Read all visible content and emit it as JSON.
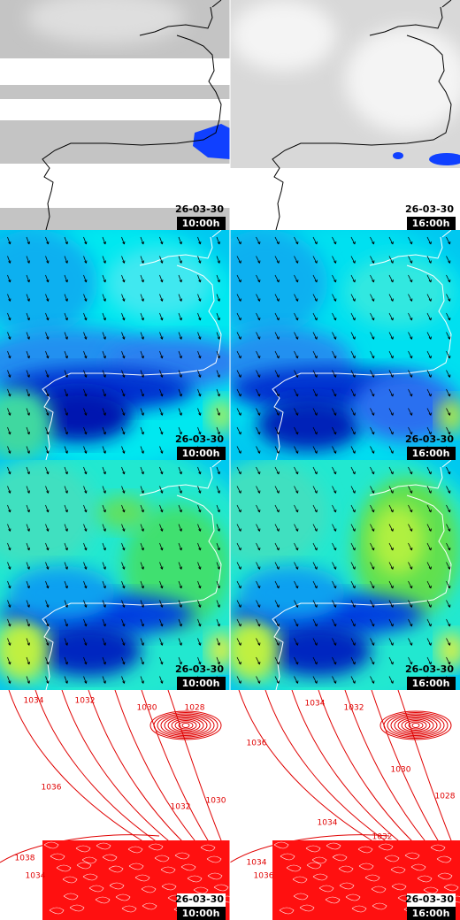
{
  "panels": [
    {
      "date": "26-03-30",
      "time": "10:00h"
    },
    {
      "date": "26-03-30",
      "time": "16:00h"
    },
    {
      "date": "26-03-30",
      "time": "10:00h"
    },
    {
      "date": "26-03-30",
      "time": "16:00h"
    },
    {
      "date": "26-03-30",
      "time": "10:00h"
    },
    {
      "date": "26-03-30",
      "time": "16:00h"
    },
    {
      "date": "26-03-30",
      "time": "10:00h"
    },
    {
      "date": "26-03-30",
      "time": "16:00h"
    }
  ],
  "isobar_labels": [
    [
      "1034",
      "1032",
      "1030",
      "1028",
      "1036",
      "1032",
      "1030",
      "1038",
      "1034"
    ],
    [
      "1034",
      "1032",
      "1036",
      "1030",
      "1028",
      "1034",
      "1032",
      "1034",
      "1036"
    ]
  ]
}
